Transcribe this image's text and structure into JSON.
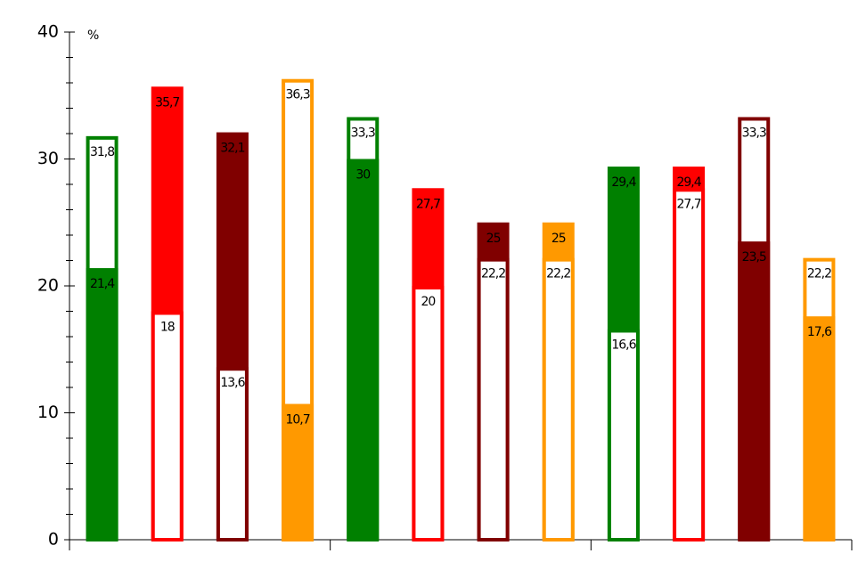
{
  "chart_data": {
    "type": "overlay-bar",
    "y_label": "%",
    "ylim": [
      0,
      40
    ],
    "yticks": [
      0,
      10,
      20,
      30,
      40
    ],
    "groups": 3,
    "bars": [
      {
        "color": "#008000",
        "filled": 21.4,
        "filled_label": "21,4",
        "outlined": 31.8,
        "outlined_label": "31,8"
      },
      {
        "color": "#ff0000",
        "filled": 35.7,
        "filled_label": "35,7",
        "outlined": 18
      },
      {
        "color": "#800000",
        "filled": 32.1,
        "filled_label": "32,1",
        "outlined": 13.6,
        "outlined_label": "13,6"
      },
      {
        "color": "#ff9900",
        "filled": 10.7,
        "filled_label": "10,7",
        "outlined": 36.3,
        "outlined_label": "36,3"
      },
      {
        "color": "#008000",
        "filled": 30,
        "outlined": 33.3,
        "outlined_label": "33,3"
      },
      {
        "color": "#ff0000",
        "filled": 27.7,
        "filled_label": "27,7",
        "outlined": 20
      },
      {
        "color": "#800000",
        "filled": 25,
        "outlined": 22.2,
        "outlined_label": "22,2"
      },
      {
        "color": "#ff9900",
        "filled": 25,
        "outlined": 22.2,
        "outlined_label": "22,2"
      },
      {
        "color": "#008000",
        "filled": 29.4,
        "filled_label": "29,4",
        "outlined": 16.6,
        "outlined_label": "16,6"
      },
      {
        "color": "#ff0000",
        "filled": 29.4,
        "filled_label": "29,4",
        "outlined": 27.7,
        "outlined_label": "27,7"
      },
      {
        "color": "#800000",
        "filled": 23.5,
        "filled_label": "23,5",
        "outlined": 33.3,
        "outlined_label": "33,3"
      },
      {
        "color": "#ff9900",
        "filled": 17.6,
        "filled_label": "17,6",
        "outlined": 22.2,
        "outlined_label": "22,2"
      }
    ]
  }
}
